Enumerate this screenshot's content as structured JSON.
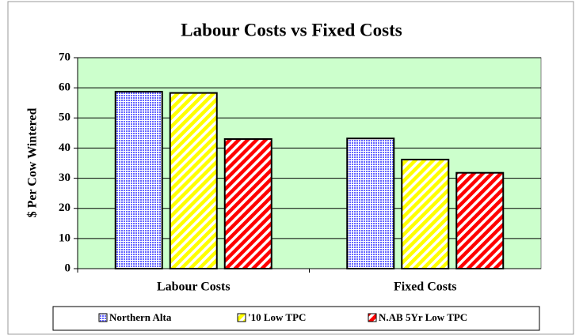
{
  "chart_data": {
    "type": "bar",
    "title": "Labour Costs vs Fixed Costs",
    "y_label": "$ Per Cow Wintered",
    "categories": [
      "Labour Costs",
      "Fixed Costs"
    ],
    "series": [
      {
        "name": "Northern Alta",
        "color": "#6666ff",
        "pattern": "dots",
        "values": [
          58.7,
          43.2
        ]
      },
      {
        "name": "'10 Low TPC",
        "color": "#ffff00",
        "pattern": "stripes",
        "values": [
          58.3,
          36.2
        ]
      },
      {
        "name": "N.AB 5Yr Low TPC",
        "color": "#ff0000",
        "pattern": "stripes",
        "values": [
          43,
          31.8
        ]
      }
    ],
    "ylim": [
      0,
      70
    ],
    "yticks": [
      0,
      10,
      20,
      30,
      40,
      50,
      60,
      70
    ],
    "grid": true,
    "legend": "bottom"
  }
}
